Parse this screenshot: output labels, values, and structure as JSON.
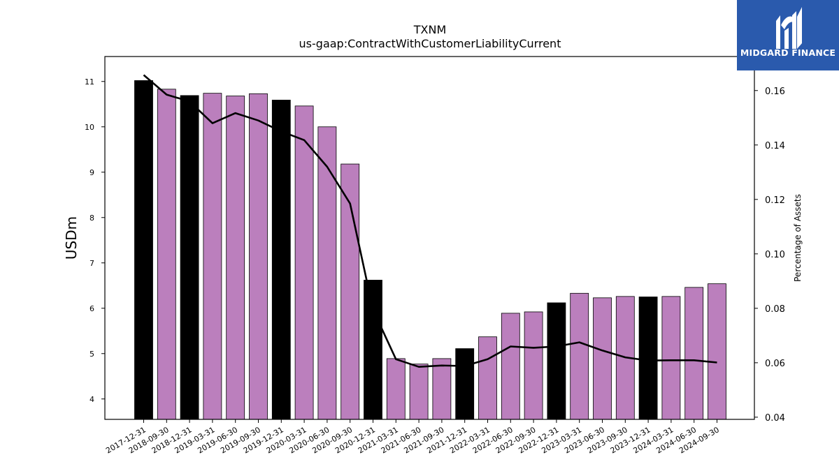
{
  "chart_data": {
    "type": "bar",
    "title": "TXNM",
    "subtitle": "us-gaap:ContractWithCustomerLiabilityCurrent",
    "ylabel": "USDm",
    "y2label": "Percentage of Assets",
    "ylim": [
      3.55,
      11.55
    ],
    "y2lim": [
      0.0392,
      0.1725
    ],
    "yticks": [
      "4",
      "5",
      "6",
      "7",
      "8",
      "9",
      "10",
      "11"
    ],
    "y2ticks": [
      "0.04",
      "0.06",
      "0.08",
      "0.10",
      "0.12",
      "0.14",
      "0.16"
    ],
    "categories": [
      "2017-12-31",
      "2018-09-30",
      "2018-12-31",
      "2019-03-31",
      "2019-06-30",
      "2019-09-30",
      "2019-12-31",
      "2020-03-31",
      "2020-06-30",
      "2020-09-30",
      "2020-12-31",
      "2021-03-31",
      "2021-06-30",
      "2021-09-30",
      "2021-12-31",
      "2022-03-31",
      "2022-06-30",
      "2022-09-30",
      "2022-12-31",
      "2023-03-31",
      "2023-06-30",
      "2023-09-30",
      "2023-12-31",
      "2024-03-31",
      "2024-06-30",
      "2024-09-30"
    ],
    "series": [
      {
        "type": "bar",
        "values": [
          11.02,
          10.83,
          10.69,
          10.74,
          10.68,
          10.73,
          10.59,
          10.46,
          10.0,
          9.18,
          6.62,
          4.89,
          4.77,
          4.89,
          5.11,
          5.37,
          5.89,
          5.92,
          6.12,
          6.33,
          6.23,
          6.26,
          6.25,
          6.26,
          6.46,
          6.54
        ],
        "year_end": [
          true,
          false,
          true,
          false,
          false,
          false,
          true,
          false,
          false,
          false,
          true,
          false,
          false,
          false,
          true,
          false,
          false,
          false,
          true,
          false,
          false,
          false,
          true,
          false,
          false,
          false
        ]
      },
      {
        "type": "line",
        "axis": "right",
        "values": [
          0.1657,
          0.1585,
          0.156,
          0.148,
          0.1517,
          0.149,
          0.145,
          0.1418,
          0.132,
          0.1185,
          0.0795,
          0.0613,
          0.0585,
          0.059,
          0.0588,
          0.0613,
          0.066,
          0.0655,
          0.066,
          0.0675,
          0.0645,
          0.062,
          0.0608,
          0.0609,
          0.0609,
          0.0601
        ]
      }
    ],
    "colors": {
      "year_end_bar": "#000000",
      "quarter_bar": "#bb7fbd",
      "line": "#000000",
      "logo_bg": "#2a5aad"
    },
    "grid": false
  },
  "logo": {
    "text": "MIDGARD FINANCE",
    "icon": "midgard-finance-logo-icon"
  }
}
